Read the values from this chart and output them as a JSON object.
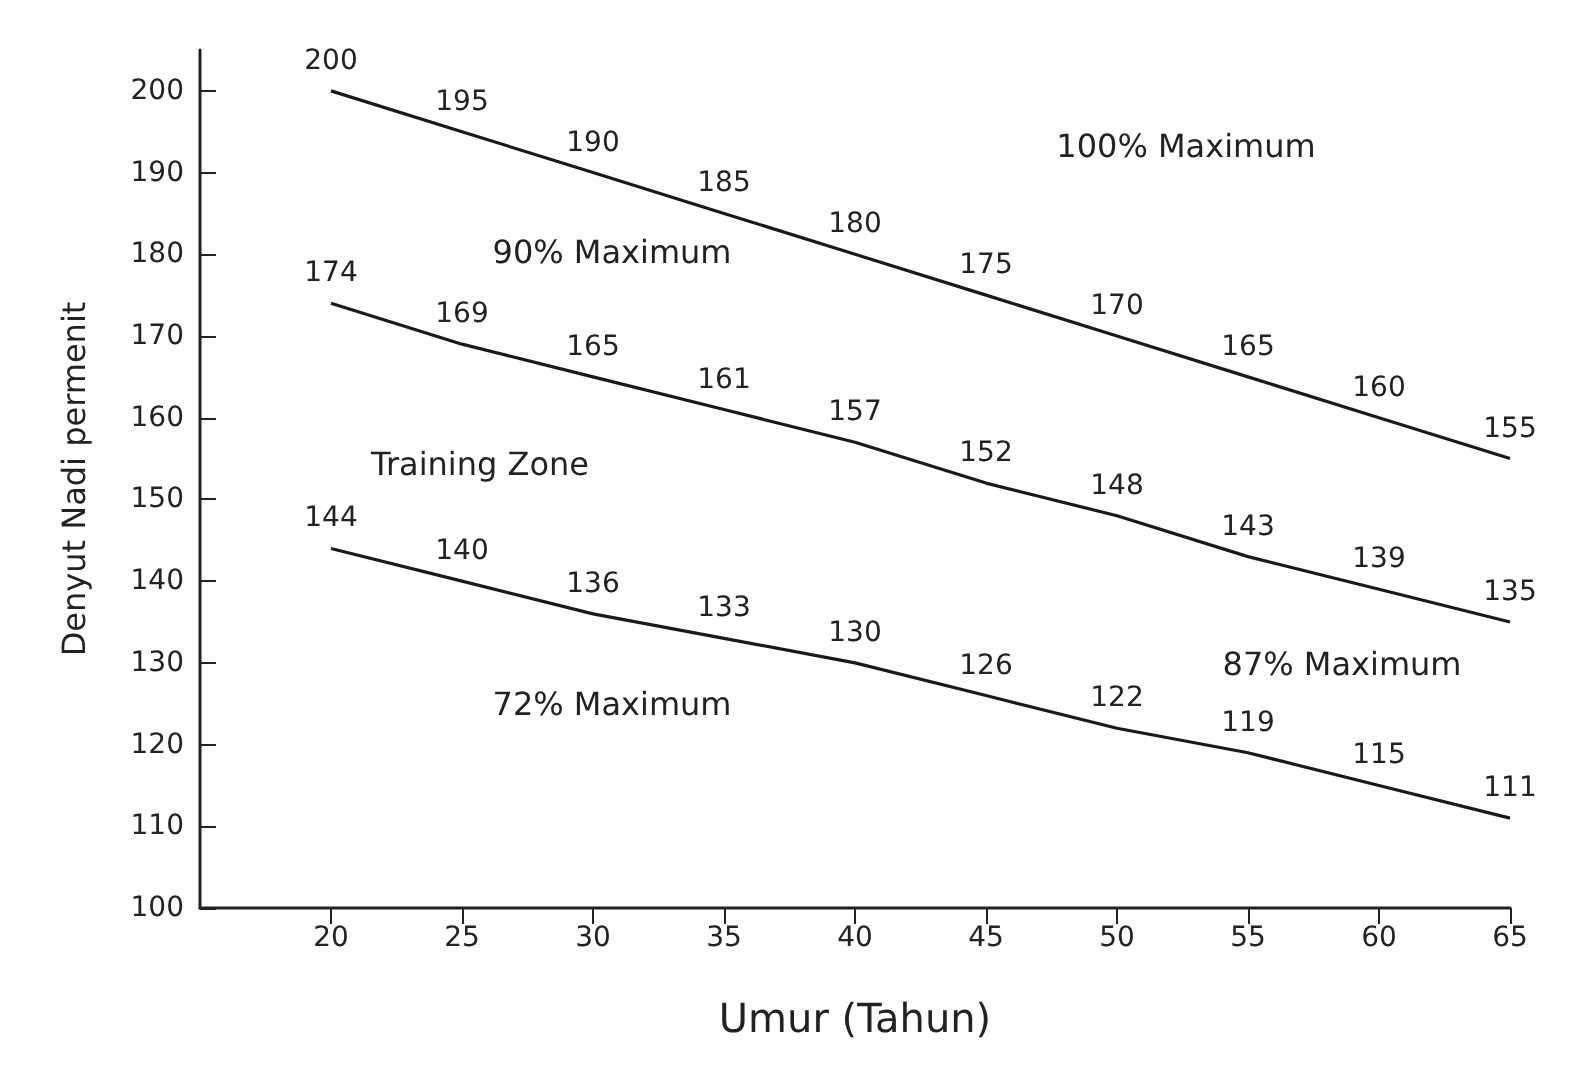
{
  "chart_data": {
    "type": "line",
    "xlabel": "Umur (Tahun)",
    "ylabel": "Denyut Nadi permenit",
    "x": [
      20,
      25,
      30,
      35,
      40,
      45,
      50,
      55,
      60,
      65
    ],
    "series": [
      {
        "color": "#1a1a1a",
        "values": [
          200,
          195,
          190,
          185,
          180,
          175,
          170,
          165,
          160,
          155
        ]
      },
      {
        "color": "#1a1a1a",
        "values": [
          174,
          169,
          165,
          161,
          157,
          152,
          148,
          143,
          139,
          135
        ]
      },
      {
        "color": "#1a1a1a",
        "values": [
          144,
          140,
          136,
          133,
          130,
          126,
          122,
          119,
          115,
          111
        ]
      }
    ],
    "xlim": [
      15,
      65
    ],
    "xticks": [
      20,
      25,
      30,
      35,
      40,
      45,
      50,
      55,
      60,
      65
    ],
    "ylim": [
      100,
      205
    ],
    "yticks": [
      100,
      110,
      120,
      130,
      140,
      150,
      160,
      170,
      180,
      190,
      200
    ],
    "grid": false,
    "marker": "none",
    "line_style": "solid",
    "data_labels": true,
    "annotations": [
      "100% Maximum",
      "90% Maximum",
      "87% Maximum",
      "72% Maximum",
      "Training Zone"
    ]
  }
}
